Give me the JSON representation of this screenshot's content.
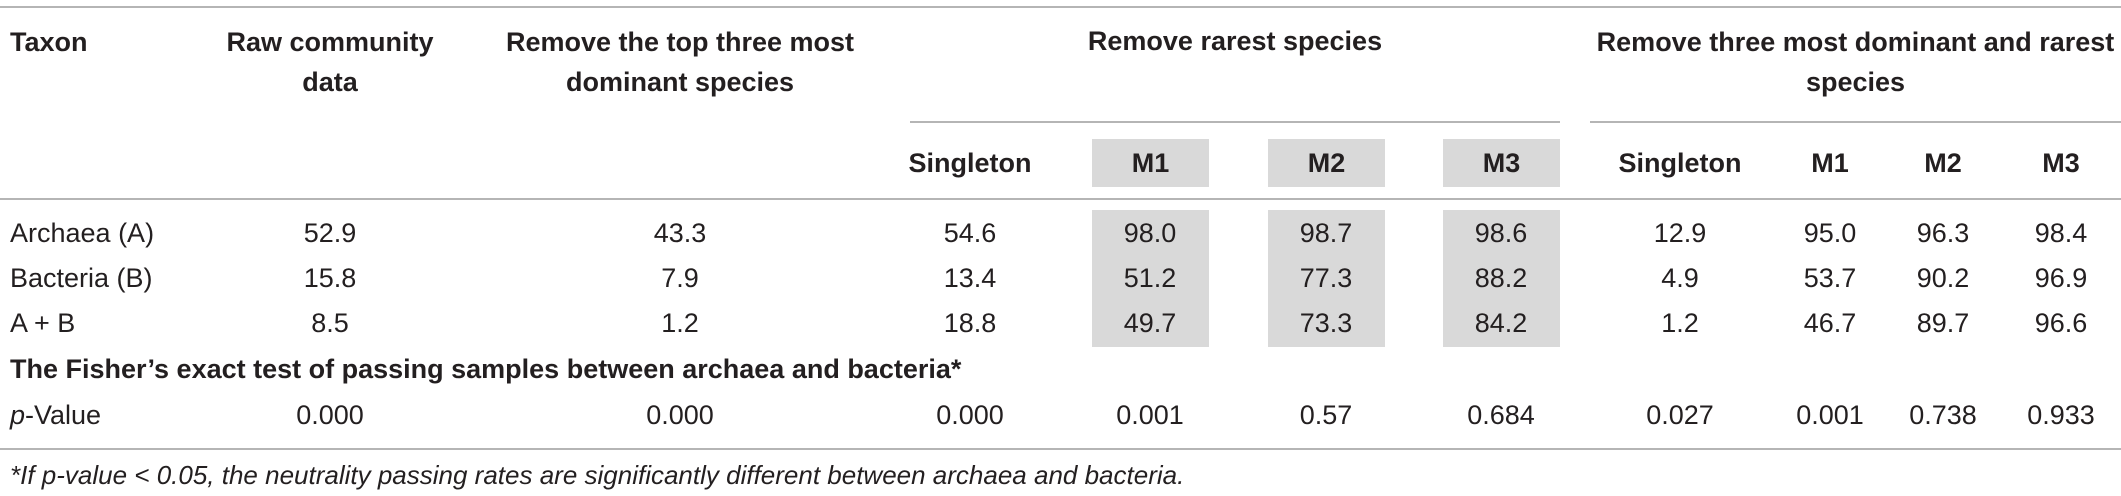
{
  "header": {
    "taxon": "Taxon",
    "raw": "Raw community data",
    "remove_top": "Remove the top three most dominant species",
    "remove_rarest": "Remove rarest species",
    "remove_both": "Remove three most dominant and rarest species",
    "sub": [
      "Singleton",
      "M1",
      "M2",
      "M3",
      "Singleton",
      "M1",
      "M2",
      "M3"
    ]
  },
  "rows": [
    {
      "taxon": "Archaea (A)",
      "values": [
        "52.9",
        "43.3",
        "54.6",
        "98.0",
        "98.7",
        "98.6",
        "12.9",
        "95.0",
        "96.3",
        "98.4"
      ]
    },
    {
      "taxon": "Bacteria (B)",
      "values": [
        "15.8",
        "7.9",
        "13.4",
        "51.2",
        "77.3",
        "88.2",
        "4.9",
        "53.7",
        "90.2",
        "96.9"
      ]
    },
    {
      "taxon": "A + B",
      "values": [
        "8.5",
        "1.2",
        "18.8",
        "49.7",
        "73.3",
        "84.2",
        "1.2",
        "46.7",
        "89.7",
        "96.6"
      ]
    }
  ],
  "fisher": {
    "title": "The Fisher’s exact test of passing samples between archaea and bacteria*",
    "label_italic": "p",
    "label_rest": "-Value",
    "values": [
      "0.000",
      "0.000",
      "0.000",
      "0.001",
      "0.57",
      "0.684",
      "0.027",
      "0.001",
      "0.738",
      "0.933"
    ]
  },
  "footnote": "*If p-value < 0.05, the neutrality passing rates are significantly different between archaea and bacteria.",
  "colors": {
    "rule": "#b5b5b5",
    "shade": "#d9d9d9",
    "text": "#231f20"
  }
}
